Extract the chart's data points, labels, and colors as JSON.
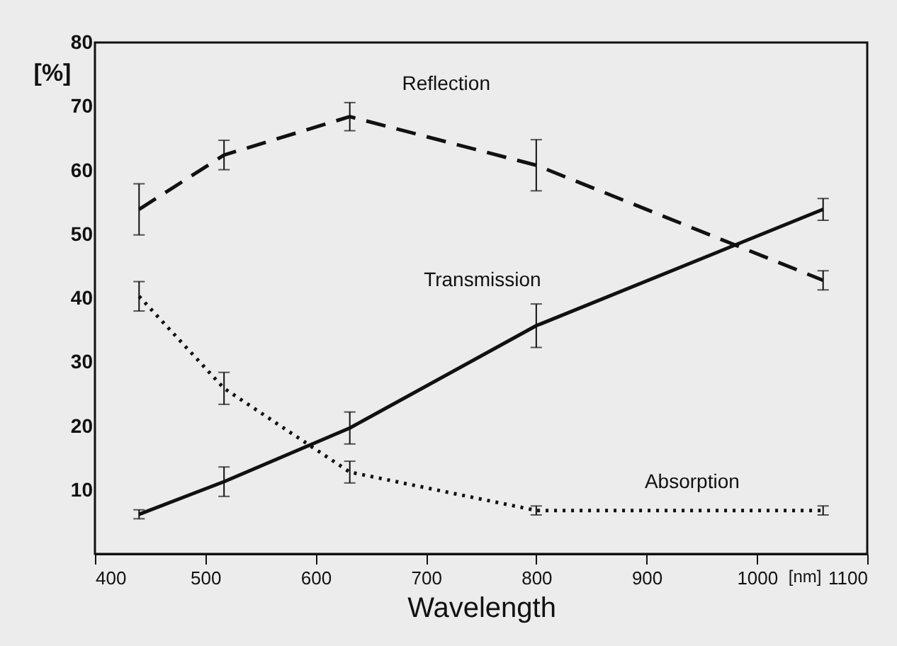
{
  "chart_data": {
    "type": "line",
    "xlabel": "Wavelength",
    "ylabel": "[%]",
    "x": [
      440,
      517,
      631,
      800,
      1060
    ],
    "series": [
      {
        "name": "Reflection",
        "color": "#111111",
        "line_style": "dashed",
        "values": [
          53.9,
          62.4,
          68.4,
          60.8,
          42.8
        ],
        "errors": [
          4,
          2.3,
          2.2,
          4,
          1.5
        ]
      },
      {
        "name": "Transmission",
        "color": "#111111",
        "line_style": "solid",
        "values": [
          6.2,
          11.3,
          19.7,
          35.7,
          53.9
        ],
        "errors": [
          0.7,
          2.3,
          2.5,
          3.4,
          1.7
        ]
      },
      {
        "name": "Absorption",
        "color": "#111111",
        "line_style": "dotted",
        "values": [
          40.3,
          25.9,
          12.8,
          6.8,
          6.8
        ],
        "errors": [
          2.3,
          2.5,
          1.7,
          0.7,
          0.7
        ]
      }
    ],
    "xlim": [
      400,
      1100
    ],
    "xticks": [
      400,
      500,
      600,
      700,
      800,
      900,
      1000,
      1100
    ],
    "ylim": [
      0,
      80
    ],
    "yticks": [
      10,
      20,
      30,
      40,
      50,
      60,
      70,
      80
    ],
    "annotations": [
      "[nm]"
    ],
    "grid": false,
    "marker": "none"
  }
}
